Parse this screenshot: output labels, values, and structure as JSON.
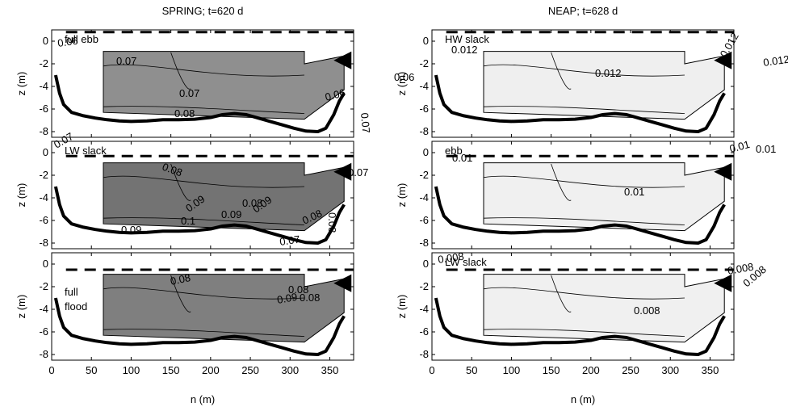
{
  "chart_data": {
    "type": "contour",
    "columns": [
      {
        "title": "SPRING; t=620 d",
        "panels": [
          {
            "label": "full ebb",
            "fill_color": "#8f8f8f",
            "secondary_fill_color": "#a6a6a6",
            "contour_labels": [
              "0.06",
              "0.07",
              "0.07",
              "0.06",
              "0.07",
              "0.06",
              "0.08"
            ]
          },
          {
            "label": "LW slack",
            "fill_color": "#737373",
            "secondary_fill_color": "#8a8a8a",
            "contour_labels": [
              "0.07",
              "0.08",
              "0.09",
              "0.09",
              "0.08",
              "0.08",
              "0.07",
              "0.09",
              "0.1",
              "0.09",
              "0.08",
              "0.07"
            ]
          },
          {
            "label": "full flood",
            "fill_color": "#7f7f7f",
            "secondary_fill_color": "#7a7a7a",
            "contour_labels": [
              "0.08",
              "0.08",
              "0.09",
              "0.08"
            ]
          }
        ]
      },
      {
        "title": "NEAP; t=628 d",
        "panels": [
          {
            "label": "HW slack",
            "fill_color": "#efefef",
            "secondary_fill_color": "#f5f5f5",
            "contour_labels": [
              "0.012",
              "0.012",
              "0.012",
              "0.012"
            ]
          },
          {
            "label": "ebb",
            "fill_color": "#f0f0f0",
            "secondary_fill_color": "#f5f5f5",
            "contour_labels": [
              "0.01",
              "0.01",
              "0.01",
              "0.01"
            ]
          },
          {
            "label": "LW slack",
            "fill_color": "#f0f0f0",
            "secondary_fill_color": "#f5f5f5",
            "contour_labels": [
              "0.008",
              "0.008",
              "0.008",
              "0.008"
            ]
          }
        ]
      }
    ],
    "xlabel": "n (m)",
    "ylabel": "z (m)",
    "xlim": [
      0,
      380
    ],
    "ylim": [
      -8.5,
      1
    ],
    "xticks": [
      0,
      50,
      100,
      150,
      200,
      250,
      300,
      350
    ],
    "yticks": [
      0,
      -2,
      -4,
      -6,
      -8
    ],
    "water_level_dashed": [
      0.8,
      -0.3,
      -0.5
    ],
    "bed_profile": {
      "n": [
        5,
        10,
        15,
        25,
        40,
        55,
        70,
        85,
        100,
        120,
        140,
        160,
        180,
        200,
        215,
        230,
        245,
        260,
        275,
        290,
        305,
        320,
        335,
        345,
        355,
        362,
        368
      ],
      "z": [
        -3.0,
        -4.6,
        -5.6,
        -6.3,
        -6.6,
        -6.8,
        -6.95,
        -7.05,
        -7.1,
        -7.05,
        -6.95,
        -6.95,
        -6.9,
        -6.75,
        -6.5,
        -6.4,
        -6.5,
        -6.8,
        -7.1,
        -7.4,
        -7.7,
        -7.95,
        -8.0,
        -7.7,
        -6.5,
        -5.3,
        -4.6
      ]
    },
    "data_region": {
      "n": [
        65,
        318,
        318,
        368,
        368,
        318,
        318,
        65
      ],
      "z": [
        -0.9,
        -0.9,
        -2.0,
        -1.3,
        -4.3,
        -6.9,
        -6.9,
        -6.3
      ]
    },
    "marker_position": [
      365,
      -1.7
    ]
  }
}
